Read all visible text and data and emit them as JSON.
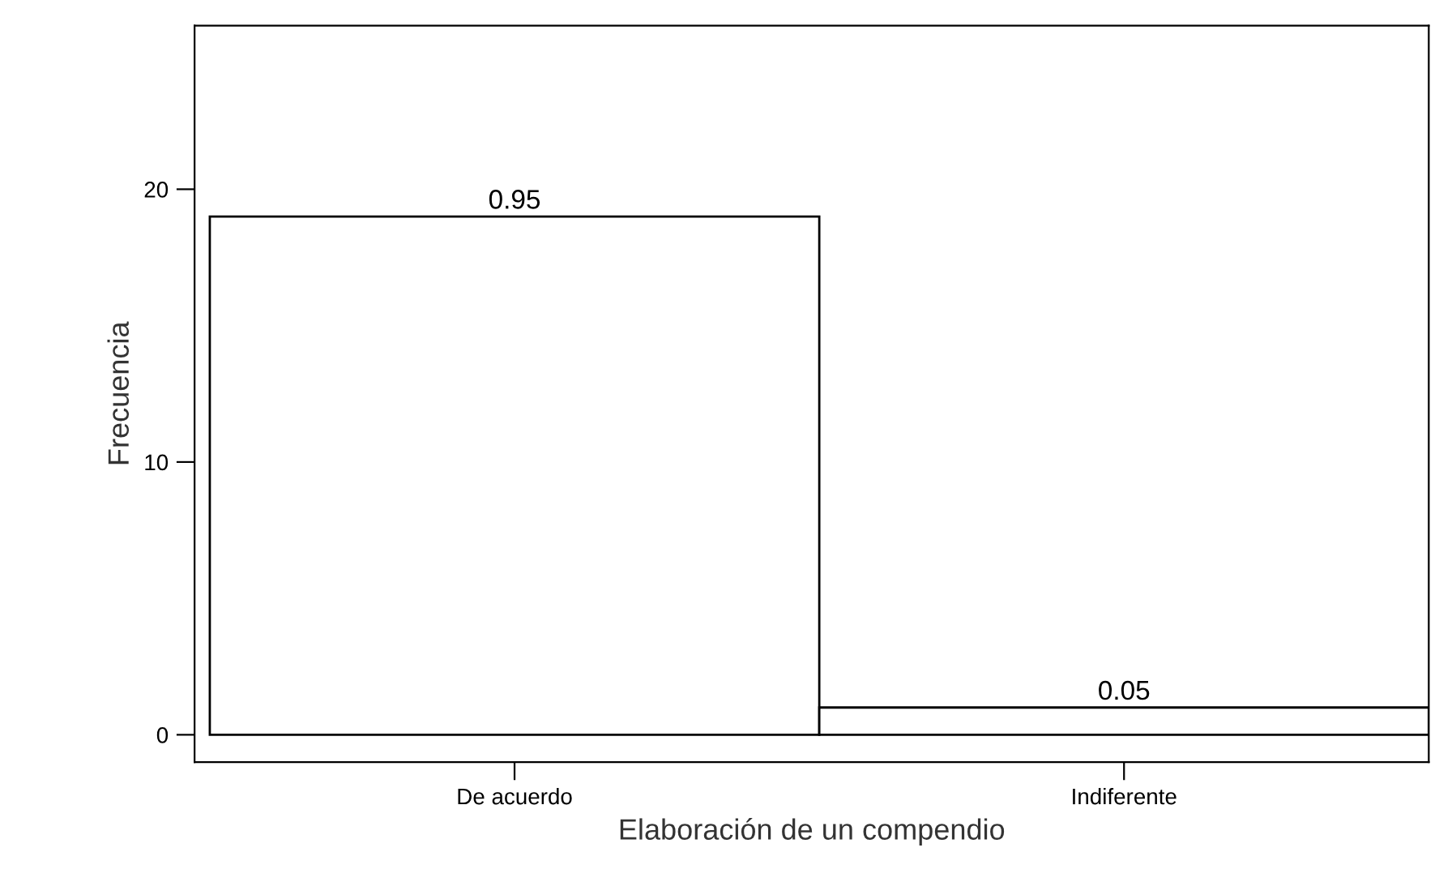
{
  "chart_data": {
    "type": "bar",
    "xlabel": "Elaboración de un compendio",
    "ylabel": "Frecuencia",
    "categories": [
      "De acuerdo",
      "Indiferente"
    ],
    "values": [
      19,
      1
    ],
    "annotations": [
      {
        "text": "0.95",
        "x": "De acuerdo",
        "y": 19
      },
      {
        "text": "0.05",
        "x": "Indiferente",
        "y": 1
      }
    ],
    "color": "#ffffff",
    "ylim": [
      -1,
      26
    ],
    "yticks": [
      0,
      10,
      20
    ],
    "grid": false,
    "legend": false
  }
}
